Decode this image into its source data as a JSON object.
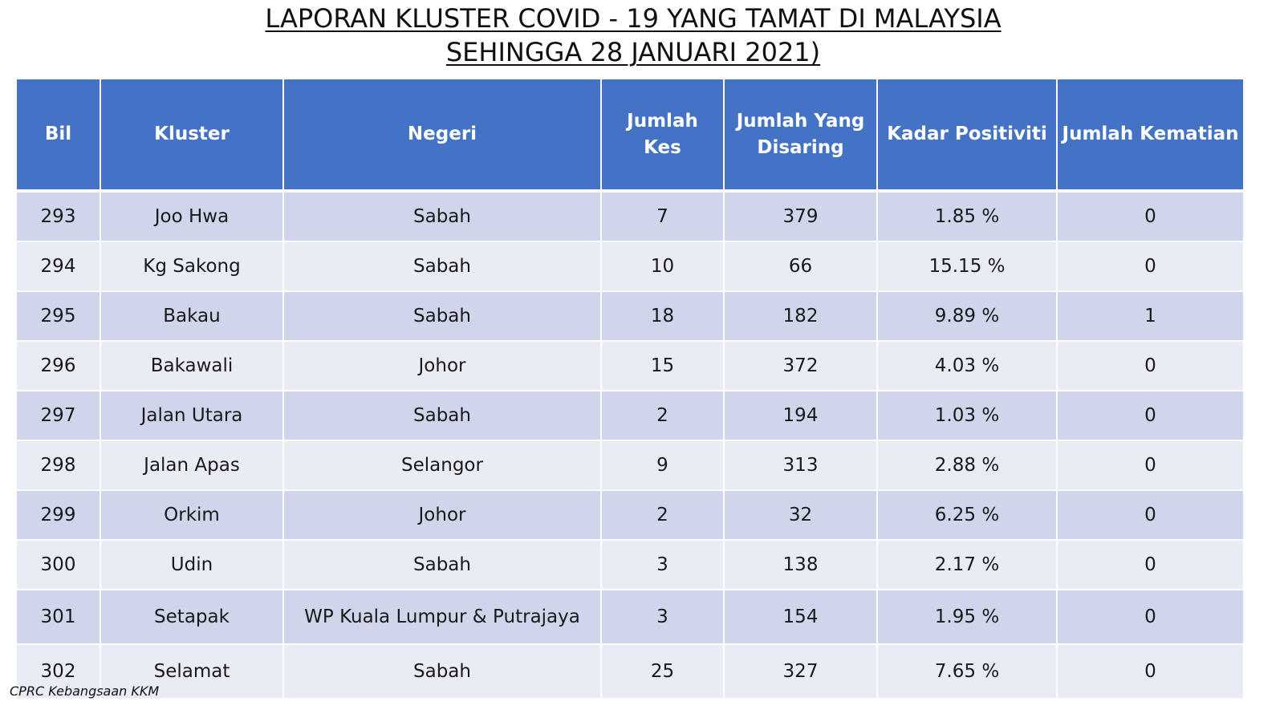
{
  "title": {
    "line1": "LAPORAN KLUSTER COVID - 19 YANG TAMAT DI MALAYSIA",
    "line2": "SEHINGGA 28 JANUARI 2021)"
  },
  "table": {
    "headers": [
      "Bil",
      "Kluster",
      "Negeri",
      "Jumlah Kes",
      "Jumlah Yang Disaring",
      "Kadar Positiviti",
      "Jumlah Kematian"
    ],
    "rows": [
      [
        "293",
        "Joo Hwa",
        "Sabah",
        "7",
        "379",
        "1.85 %",
        "0"
      ],
      [
        "294",
        "Kg Sakong",
        "Sabah",
        "10",
        "66",
        "15.15 %",
        "0"
      ],
      [
        "295",
        "Bakau",
        "Sabah",
        "18",
        "182",
        "9.89 %",
        "1"
      ],
      [
        "296",
        "Bakawali",
        "Johor",
        "15",
        "372",
        "4.03 %",
        "0"
      ],
      [
        "297",
        "Jalan Utara",
        "Sabah",
        "2",
        "194",
        "1.03 %",
        "0"
      ],
      [
        "298",
        "Jalan Apas",
        "Selangor",
        "9",
        "313",
        "2.88 %",
        "0"
      ],
      [
        "299",
        "Orkim",
        "Johor",
        "2",
        "32",
        "6.25 %",
        "0"
      ],
      [
        "300",
        "Udin",
        "Sabah",
        "3",
        "138",
        "2.17 %",
        "0"
      ],
      [
        "301",
        "Setapak",
        "WP Kuala Lumpur & Putrajaya",
        "3",
        "154",
        "1.95 %",
        "0"
      ],
      [
        "302",
        "Selamat",
        "Sabah",
        "25",
        "327",
        "7.65 %",
        "0"
      ]
    ]
  },
  "footer": {
    "source": "CPRC Kebangsaan KKM"
  },
  "colors": {
    "header_bg": "#4472c4",
    "row_odd": "#cfd5ea",
    "row_even": "#e9ebf5"
  }
}
